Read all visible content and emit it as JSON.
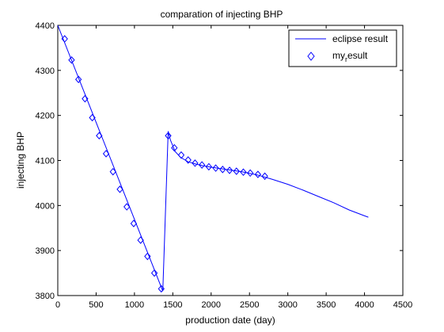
{
  "chart_data": {
    "type": "line",
    "title": "comparation of injecting BHP",
    "xlabel": "production date (day)",
    "ylabel": "injecting BHP",
    "xlim": [
      0,
      4500
    ],
    "ylim": [
      3800,
      4400
    ],
    "xticks": [
      "0",
      "500",
      "1000",
      "1500",
      "2000",
      "2500",
      "3000",
      "3500",
      "4000",
      "4500"
    ],
    "yticks": [
      "3800",
      "3900",
      "4000",
      "4100",
      "4200",
      "4300",
      "4400"
    ],
    "xtick_values": [
      0,
      500,
      1000,
      1500,
      2000,
      2500,
      3000,
      3500,
      4000,
      4500
    ],
    "ytick_values": [
      3800,
      3900,
      4000,
      4100,
      4200,
      4300,
      4400
    ],
    "grid": false,
    "legend_position": "top-right",
    "series": [
      {
        "name": "eclipse result",
        "style": "line",
        "color": "#0000ff",
        "x": [
          0,
          1370,
          1440,
          1470,
          1530,
          1600,
          1700,
          1800,
          1900,
          2000,
          2200,
          2400,
          2600,
          2800,
          3000,
          3200,
          3400,
          3600,
          3800,
          4000,
          4050
        ],
        "y": [
          4400,
          3810,
          4165,
          4145,
          4120,
          4107,
          4097,
          4092,
          4088,
          4085,
          4080,
          4075,
          4068,
          4058,
          4047,
          4034,
          4020,
          4006,
          3990,
          3977,
          3974
        ]
      },
      {
        "name": "my",
        "name_subscript": "r",
        "name_suffix": "esult",
        "style": "marker-diamond",
        "color": "#0000ff",
        "x": [
          90,
          180,
          270,
          355,
          450,
          540,
          630,
          720,
          810,
          900,
          990,
          1080,
          1170,
          1260,
          1350,
          1440,
          1520,
          1610,
          1700,
          1790,
          1880,
          1970,
          2060,
          2150,
          2240,
          2330,
          2420,
          2510,
          2610,
          2700
        ],
        "y": [
          4370,
          4323,
          4280,
          4237,
          4195,
          4155,
          4115,
          4075,
          4036,
          3997,
          3960,
          3923,
          3887,
          3850,
          3815,
          4155,
          4128,
          4112,
          4101,
          4094,
          4090,
          4086,
          4083,
          4080,
          4078,
          4076,
          4074,
          4072,
          4069,
          4065
        ]
      }
    ]
  }
}
